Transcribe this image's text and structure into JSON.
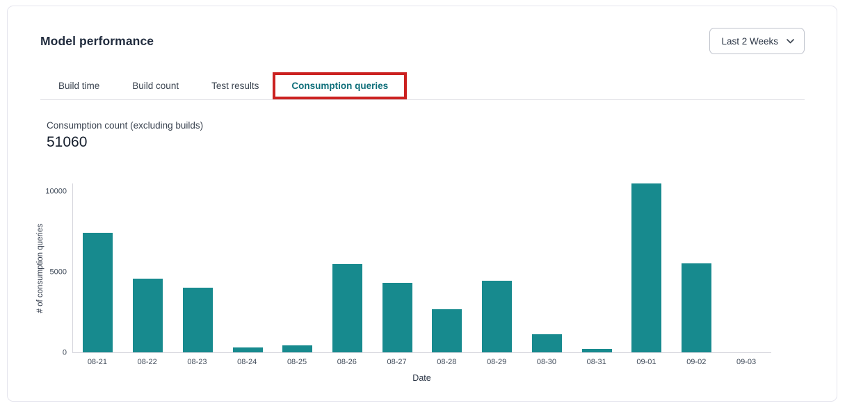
{
  "card": {
    "title": "Model performance",
    "date_range": "Last 2 Weeks"
  },
  "tabs": [
    {
      "label": "Build time",
      "active": false
    },
    {
      "label": "Build count",
      "active": false
    },
    {
      "label": "Test results",
      "active": false
    },
    {
      "label": "Consumption queries",
      "active": true,
      "annotated": true
    }
  ],
  "metric": {
    "label": "Consumption count (excluding builds)",
    "value": "51060"
  },
  "chart_data": {
    "type": "bar",
    "title": "",
    "categories": [
      "08-21",
      "08-22",
      "08-23",
      "08-24",
      "08-25",
      "08-26",
      "08-27",
      "08-28",
      "08-29",
      "08-30",
      "08-31",
      "09-01",
      "09-02",
      "09-03"
    ],
    "values": [
      7420,
      4580,
      4020,
      300,
      430,
      5470,
      4330,
      2700,
      4440,
      1120,
      210,
      10500,
      5540,
      0
    ],
    "xlabel": "Date",
    "ylabel": "# of consumption queries",
    "ylim": [
      0,
      10500
    ],
    "yticks": [
      0,
      5000,
      10000
    ],
    "grid": false,
    "legend": false,
    "bar_color": "#178a8e"
  },
  "annotation": {
    "shape": "red-highlight-rectangle",
    "target_tab": "Consumption queries",
    "color": "#cb2120"
  },
  "colors": {
    "active_tab_teal": "#0f6f7a",
    "bar_teal": "#178a8e",
    "annotation_red": "#cb2120",
    "card_border": "#e4e4ed",
    "text_dark": "#1f2a3c"
  }
}
